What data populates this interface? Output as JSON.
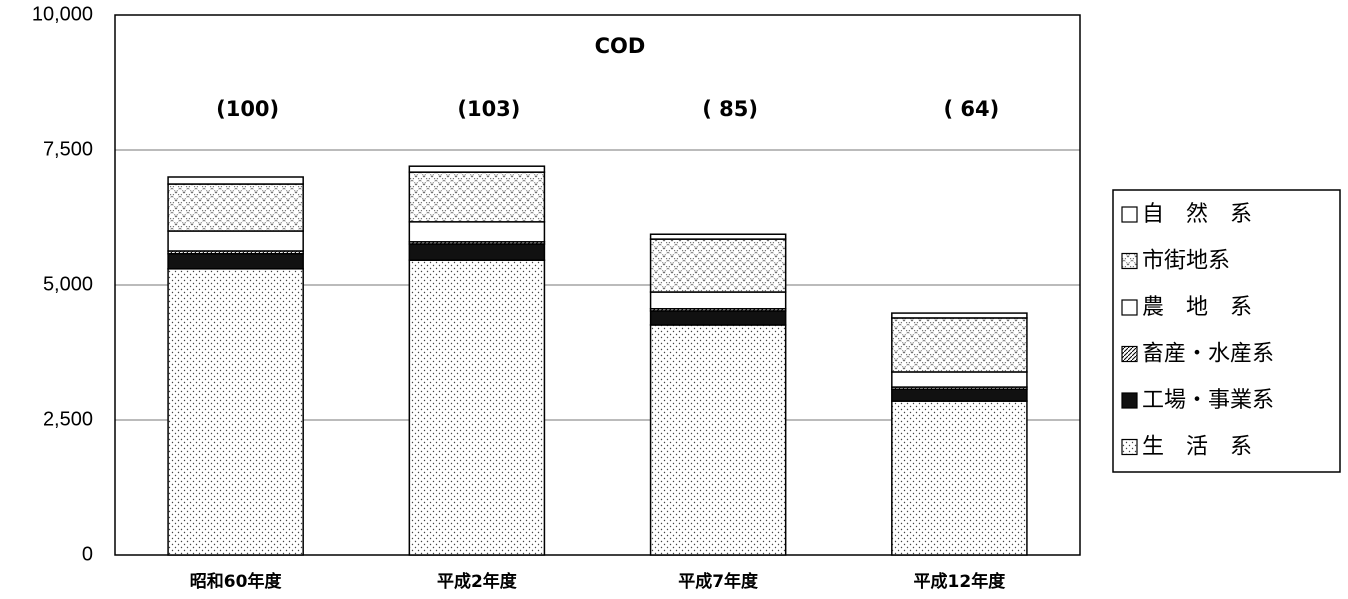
{
  "chart_data": {
    "type": "stacked_bar",
    "title": "COD",
    "categories": [
      "昭和60年度",
      "平成2年度",
      "平成7年度",
      "平成12年度"
    ],
    "annotations": [
      "(100)",
      "(103)",
      "( 85)",
      "( 64)"
    ],
    "series": [
      {
        "name": "生　活　系",
        "color": "#ffffff",
        "pattern": "dots",
        "values": [
          5300,
          5460,
          4260,
          2850
        ]
      },
      {
        "name": "工場・事業系",
        "color": "#111111",
        "pattern": "solid",
        "values": [
          280,
          300,
          260,
          220
        ]
      },
      {
        "name": "畜産・水産系",
        "color": "#ffffff",
        "pattern": "hatch",
        "values": [
          50,
          40,
          40,
          40
        ]
      },
      {
        "name": "農　地　系",
        "color": "#ffffff",
        "pattern": "none",
        "values": [
          370,
          370,
          310,
          280
        ]
      },
      {
        "name": "市街地系",
        "color": "#ffffff",
        "pattern": "cross",
        "values": [
          870,
          920,
          980,
          1000
        ]
      },
      {
        "name": "自　然　系",
        "color": "#ffffff",
        "pattern": "none",
        "values": [
          130,
          110,
          90,
          90
        ]
      }
    ],
    "ylim": [
      0,
      10000
    ],
    "yticks": [
      0,
      {
        "value": 2500,
        "label": "2,500"
      },
      {
        "value": 5000,
        "label": "5,000"
      },
      {
        "value": 7500,
        "label": "7,500"
      },
      {
        "value": 10000,
        "label": "10,000"
      }
    ],
    "grid": true,
    "legend": "right"
  }
}
